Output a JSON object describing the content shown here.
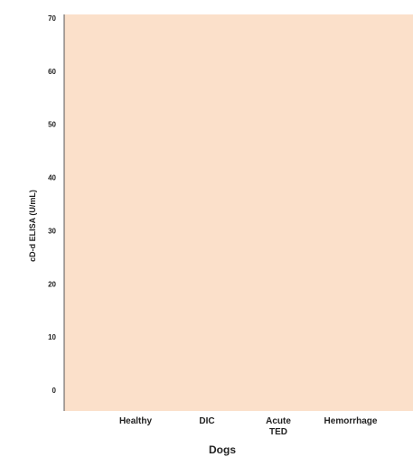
{
  "chart_data": {
    "type": "scatter",
    "title": "",
    "xlabel": "Dogs",
    "ylabel": "cD-d ELISA (U/mL)",
    "categories": [
      "Healthy",
      "DIC",
      "Acute\nTED",
      "Hemorrhage"
    ],
    "ylim": [
      0,
      70
    ],
    "yticks": [
      0,
      10,
      20,
      30,
      40,
      50,
      60,
      70
    ],
    "series": [],
    "grid": false,
    "legend": "none",
    "colors": {
      "plot_background": "#fbe0ca",
      "axis": "#555555",
      "text": "#222222"
    }
  }
}
